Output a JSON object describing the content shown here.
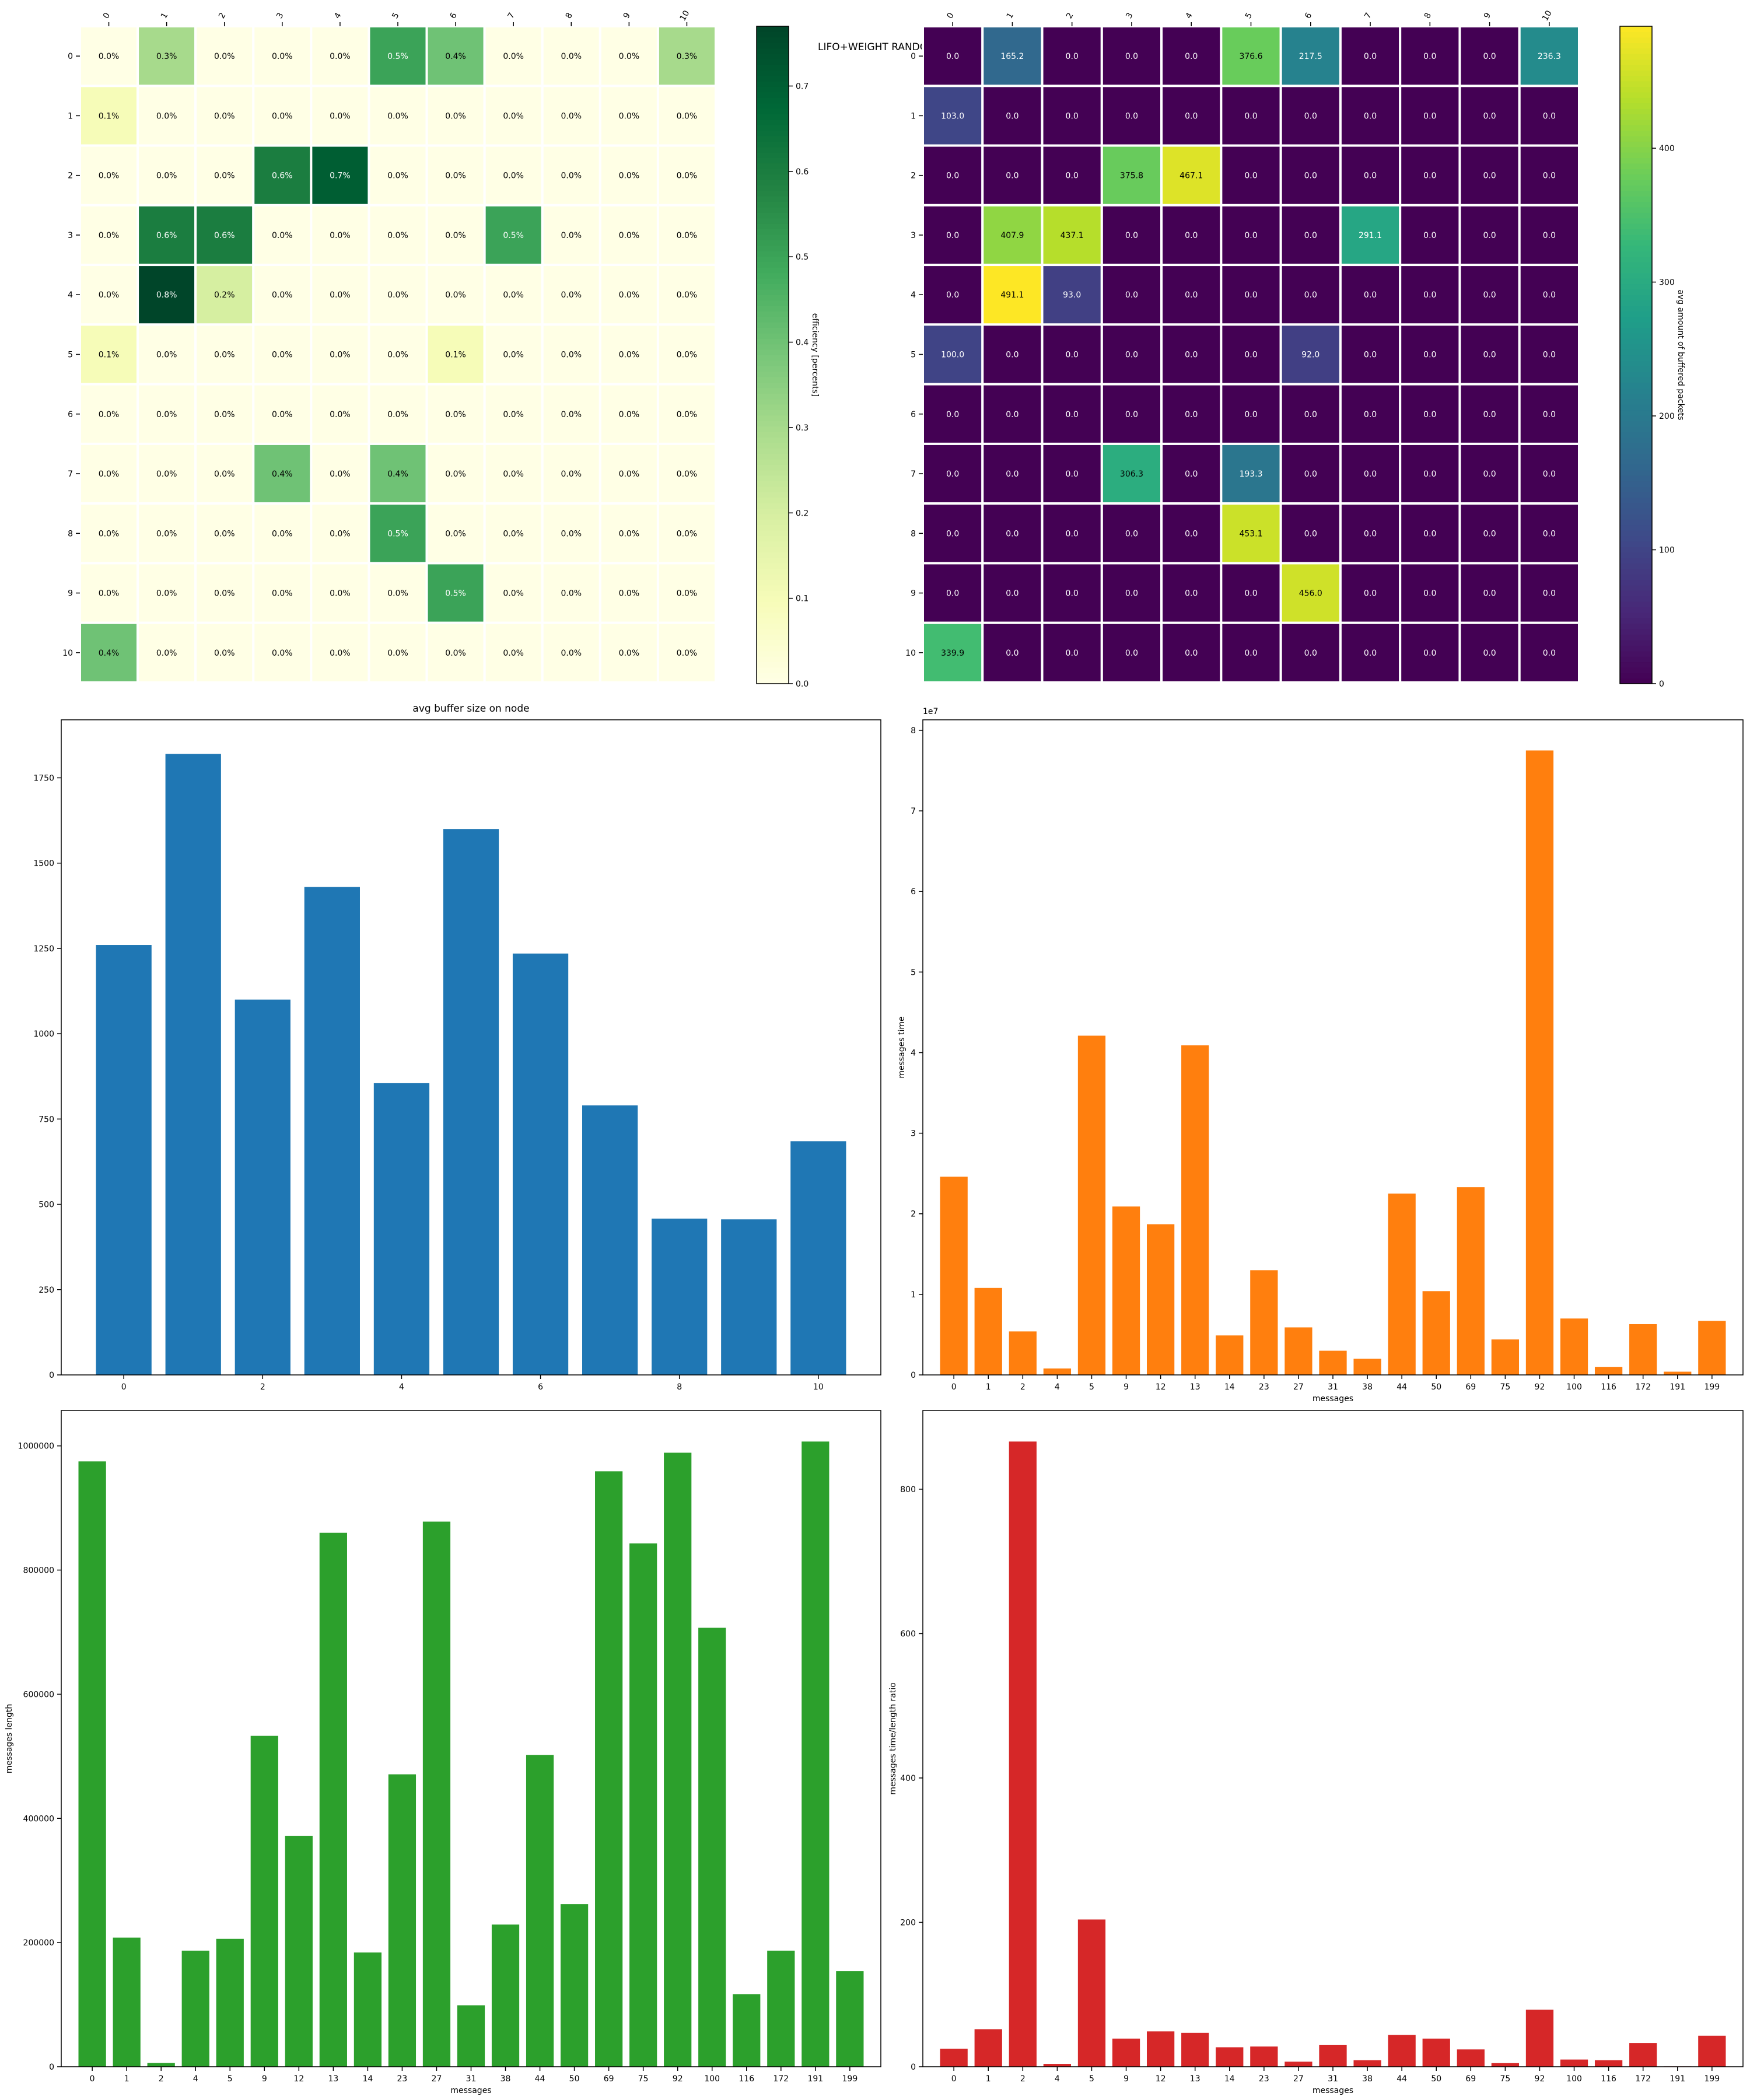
{
  "figure": {
    "suptitle": "LIFO+WEIGHT RANDOM"
  },
  "chart_data": [
    {
      "type": "heatmap",
      "rows": [
        "0",
        "1",
        "2",
        "3",
        "4",
        "5",
        "6",
        "7",
        "8",
        "9",
        "10"
      ],
      "cols": [
        "0",
        "1",
        "2",
        "3",
        "4",
        "5",
        "6",
        "7",
        "8",
        "9",
        "10"
      ],
      "values": [
        [
          0.0,
          0.3,
          0.0,
          0.0,
          0.0,
          0.5,
          0.4,
          0.0,
          0.0,
          0.0,
          0.3
        ],
        [
          0.1,
          0.0,
          0.0,
          0.0,
          0.0,
          0.0,
          0.0,
          0.0,
          0.0,
          0.0,
          0.0
        ],
        [
          0.0,
          0.0,
          0.0,
          0.6,
          0.7,
          0.0,
          0.0,
          0.0,
          0.0,
          0.0,
          0.0
        ],
        [
          0.0,
          0.6,
          0.6,
          0.0,
          0.0,
          0.0,
          0.0,
          0.5,
          0.0,
          0.0,
          0.0
        ],
        [
          0.0,
          0.8,
          0.2,
          0.0,
          0.0,
          0.0,
          0.0,
          0.0,
          0.0,
          0.0,
          0.0
        ],
        [
          0.1,
          0.0,
          0.0,
          0.0,
          0.0,
          0.0,
          0.1,
          0.0,
          0.0,
          0.0,
          0.0
        ],
        [
          0.0,
          0.0,
          0.0,
          0.0,
          0.0,
          0.0,
          0.0,
          0.0,
          0.0,
          0.0,
          0.0
        ],
        [
          0.0,
          0.0,
          0.0,
          0.4,
          0.0,
          0.4,
          0.0,
          0.0,
          0.0,
          0.0,
          0.0
        ],
        [
          0.0,
          0.0,
          0.0,
          0.0,
          0.0,
          0.5,
          0.0,
          0.0,
          0.0,
          0.0,
          0.0
        ],
        [
          0.0,
          0.0,
          0.0,
          0.0,
          0.0,
          0.0,
          0.5,
          0.0,
          0.0,
          0.0,
          0.0
        ],
        [
          0.4,
          0.0,
          0.0,
          0.0,
          0.0,
          0.0,
          0.0,
          0.0,
          0.0,
          0.0,
          0.0
        ]
      ],
      "value_suffix": "%",
      "colormap": "YlGn",
      "colorbar": {
        "label": "efficiency [percents]",
        "range": [
          0.0,
          0.77
        ],
        "ticks": [
          0.0,
          0.1,
          0.2,
          0.3,
          0.4,
          0.5,
          0.6,
          0.7
        ],
        "tick_labels": [
          "0.0",
          "0.1",
          "0.2",
          "0.3",
          "0.4",
          "0.5",
          "0.6",
          "0.7"
        ]
      }
    },
    {
      "type": "heatmap",
      "rows": [
        "0",
        "1",
        "2",
        "3",
        "4",
        "5",
        "6",
        "7",
        "8",
        "9",
        "10"
      ],
      "cols": [
        "0",
        "1",
        "2",
        "3",
        "4",
        "5",
        "6",
        "7",
        "8",
        "9",
        "10"
      ],
      "values": [
        [
          0.0,
          165.2,
          0.0,
          0.0,
          0.0,
          376.6,
          217.5,
          0.0,
          0.0,
          0.0,
          236.3
        ],
        [
          103.0,
          0.0,
          0.0,
          0.0,
          0.0,
          0.0,
          0.0,
          0.0,
          0.0,
          0.0,
          0.0
        ],
        [
          0.0,
          0.0,
          0.0,
          375.8,
          467.1,
          0.0,
          0.0,
          0.0,
          0.0,
          0.0,
          0.0
        ],
        [
          0.0,
          407.9,
          437.1,
          0.0,
          0.0,
          0.0,
          0.0,
          291.1,
          0.0,
          0.0,
          0.0
        ],
        [
          0.0,
          491.1,
          93.0,
          0.0,
          0.0,
          0.0,
          0.0,
          0.0,
          0.0,
          0.0,
          0.0
        ],
        [
          100.0,
          0.0,
          0.0,
          0.0,
          0.0,
          0.0,
          92.0,
          0.0,
          0.0,
          0.0,
          0.0
        ],
        [
          0.0,
          0.0,
          0.0,
          0.0,
          0.0,
          0.0,
          0.0,
          0.0,
          0.0,
          0.0,
          0.0
        ],
        [
          0.0,
          0.0,
          0.0,
          306.3,
          0.0,
          193.3,
          0.0,
          0.0,
          0.0,
          0.0,
          0.0
        ],
        [
          0.0,
          0.0,
          0.0,
          0.0,
          0.0,
          453.1,
          0.0,
          0.0,
          0.0,
          0.0,
          0.0
        ],
        [
          0.0,
          0.0,
          0.0,
          0.0,
          0.0,
          0.0,
          456.0,
          0.0,
          0.0,
          0.0,
          0.0
        ],
        [
          339.9,
          0.0,
          0.0,
          0.0,
          0.0,
          0.0,
          0.0,
          0.0,
          0.0,
          0.0,
          0.0
        ]
      ],
      "value_suffix": "",
      "colormap": "viridis",
      "colorbar": {
        "label": "avg amount of buffered packets",
        "range": [
          0,
          491.1
        ],
        "ticks": [
          0,
          100,
          200,
          300,
          400
        ],
        "tick_labels": [
          "0",
          "100",
          "200",
          "300",
          "400"
        ]
      }
    },
    {
      "type": "bar",
      "title": "avg buffer size on node",
      "xlabel": "",
      "ylabel": "",
      "color": "#1f77b4",
      "x": [
        0,
        1,
        2,
        3,
        4,
        5,
        6,
        7,
        8,
        9,
        10
      ],
      "values": [
        1260,
        1820,
        1100,
        1430,
        855,
        1600,
        1235,
        790,
        458,
        456,
        685
      ],
      "xlim": [
        -0.9,
        10.9
      ],
      "xticks": [
        0,
        2,
        4,
        6,
        8,
        10
      ],
      "xtick_labels": [
        "0",
        "2",
        "4",
        "6",
        "8",
        "10"
      ],
      "ylim": [
        0,
        1920
      ],
      "yticks": [
        0,
        250,
        500,
        750,
        1000,
        1250,
        1500,
        1750
      ],
      "ytick_labels": [
        "0",
        "250",
        "500",
        "750",
        "1000",
        "1250",
        "1500",
        "1750"
      ]
    },
    {
      "type": "bar",
      "xlabel": "messages",
      "ylabel": "messages time",
      "offset_text": "1e7",
      "color": "#ff7f0e",
      "categories": [
        "0",
        "1",
        "2",
        "4",
        "5",
        "9",
        "12",
        "13",
        "14",
        "23",
        "27",
        "31",
        "38",
        "44",
        "50",
        "69",
        "75",
        "92",
        "100",
        "116",
        "172",
        "191",
        "199"
      ],
      "values": [
        24600000,
        10800000,
        5400000,
        800000,
        42100000,
        20900000,
        18700000,
        40900000,
        4900000,
        13000000,
        5900000,
        3000000,
        2000000,
        22500000,
        10400000,
        23300000,
        4400000,
        77500000,
        7000000,
        1000000,
        6300000,
        400000,
        6700000
      ],
      "ylim": [
        0,
        81300000
      ],
      "yticks": [
        0,
        10000000,
        20000000,
        30000000,
        40000000,
        50000000,
        60000000,
        70000000,
        80000000
      ],
      "ytick_labels": [
        "0",
        "1",
        "2",
        "3",
        "4",
        "5",
        "6",
        "7",
        "8"
      ]
    },
    {
      "type": "bar",
      "xlabel": "messages",
      "ylabel": "messages length",
      "color": "#2ca02c",
      "categories": [
        "0",
        "1",
        "2",
        "4",
        "5",
        "9",
        "12",
        "13",
        "14",
        "23",
        "27",
        "31",
        "38",
        "44",
        "50",
        "69",
        "75",
        "92",
        "100",
        "116",
        "172",
        "191",
        "199"
      ],
      "values": [
        975000,
        208000,
        6000,
        187000,
        206000,
        533000,
        372000,
        860000,
        184000,
        471000,
        878000,
        99000,
        229000,
        502000,
        262000,
        959000,
        843000,
        989000,
        707000,
        117000,
        187000,
        1007000,
        154000
      ],
      "ylim": [
        0,
        1057000
      ],
      "yticks": [
        0,
        200000,
        400000,
        600000,
        800000,
        1000000
      ],
      "ytick_labels": [
        "0",
        "200000",
        "400000",
        "600000",
        "800000",
        "1000000"
      ]
    },
    {
      "type": "bar",
      "xlabel": "messages",
      "ylabel": "messages time/length ratio",
      "color": "#d62728",
      "categories": [
        "0",
        "1",
        "2",
        "4",
        "5",
        "9",
        "12",
        "13",
        "14",
        "23",
        "27",
        "31",
        "38",
        "44",
        "50",
        "69",
        "75",
        "92",
        "100",
        "116",
        "172",
        "191",
        "199"
      ],
      "values": [
        25,
        52,
        866,
        4,
        204,
        39,
        49,
        47,
        27,
        28,
        7,
        30,
        9,
        44,
        39,
        24,
        5,
        79,
        10,
        9,
        33,
        0.5,
        43
      ],
      "ylim": [
        0,
        909
      ],
      "yticks": [
        0,
        200,
        400,
        600,
        800
      ],
      "ytick_labels": [
        "0",
        "200",
        "400",
        "600",
        "800"
      ]
    }
  ]
}
